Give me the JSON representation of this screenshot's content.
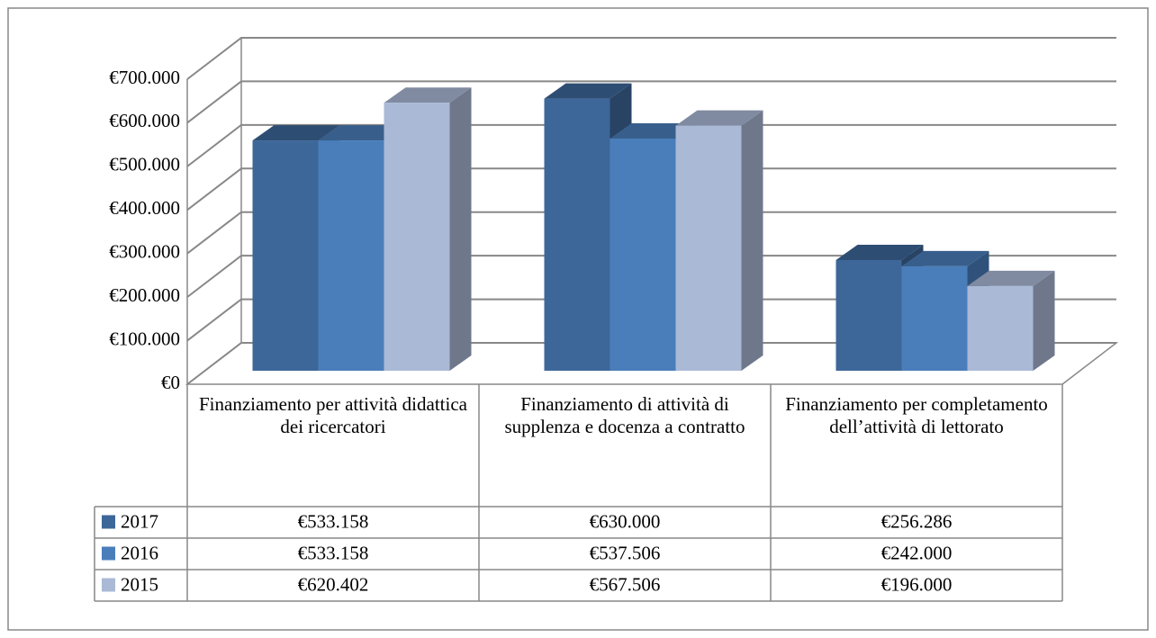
{
  "chart_data": {
    "type": "bar3d",
    "categories": [
      "Finanziamento per attività didattica dei ricercatori",
      "Finanziamento di attività di supplenza e docenza a contratto",
      "Finanziamento per completamento dell’attività di lettorato"
    ],
    "series": [
      {
        "name": "2017",
        "color": "#3d6799",
        "values": [
          533158,
          630000,
          256286
        ],
        "value_labels": [
          "€533.158",
          "€630.000",
          "€256.286"
        ]
      },
      {
        "name": "2016",
        "color": "#4a7ebb",
        "values": [
          533158,
          537506,
          242000
        ],
        "value_labels": [
          "€533.158",
          "€537.506",
          "€242.000"
        ]
      },
      {
        "name": "2015",
        "color": "#aab9d6",
        "values": [
          620402,
          567506,
          196000
        ],
        "value_labels": [
          "€620.402",
          "€567.506",
          "€196.000"
        ]
      }
    ],
    "ylim": [
      0,
      700000
    ],
    "yticks": [
      {
        "value": 0,
        "label": "€0"
      },
      {
        "value": 100000,
        "label": "€100.000"
      },
      {
        "value": 200000,
        "label": "€200.000"
      },
      {
        "value": 300000,
        "label": "€300.000"
      },
      {
        "value": 400000,
        "label": "€400.000"
      },
      {
        "value": 500000,
        "label": "€500.000"
      },
      {
        "value": 600000,
        "label": "€600.000"
      },
      {
        "value": 700000,
        "label": "€700.000"
      }
    ],
    "grid": true,
    "data_table": true
  }
}
